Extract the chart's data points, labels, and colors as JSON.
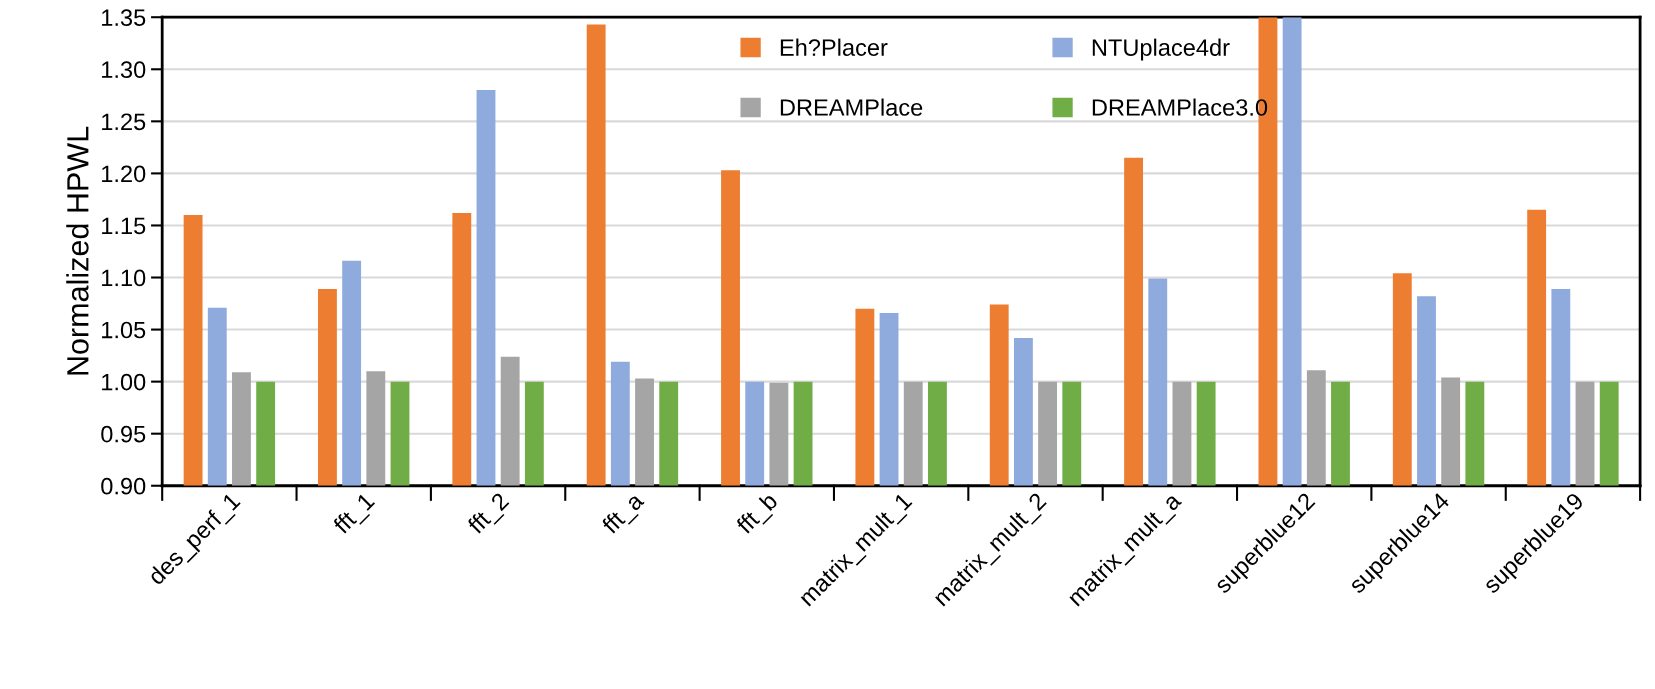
{
  "chart_data": {
    "type": "bar",
    "ylabel": "Normalized HPWL",
    "categories": [
      "des_perf_1",
      "fft_1",
      "fft_2",
      "fft_a",
      "fft_b",
      "matrix_mult_1",
      "matrix_mult_2",
      "matrix_mult_a",
      "superblue12",
      "superblue14",
      "superblue19"
    ],
    "series": [
      {
        "name": "Eh?Placer",
        "color": "#ed7d31",
        "values": [
          1.16,
          1.089,
          1.162,
          1.343,
          1.203,
          1.07,
          1.074,
          1.215,
          1.35,
          1.104,
          1.165
        ]
      },
      {
        "name": "NTUplace4dr",
        "color": "#8faadc",
        "values": [
          1.071,
          1.116,
          1.28,
          1.019,
          1.0,
          1.066,
          1.042,
          1.099,
          1.35,
          1.082,
          1.089
        ]
      },
      {
        "name": "DREAMPlace",
        "color": "#a5a5a5",
        "values": [
          1.009,
          1.01,
          1.024,
          1.003,
          0.999,
          1.0,
          1.0,
          1.0,
          1.011,
          1.004,
          1.0
        ]
      },
      {
        "name": "DREAMPlace3.0",
        "color": "#70ad47",
        "values": [
          1.0,
          1.0,
          1.0,
          1.0,
          1.0,
          1.0,
          1.0,
          1.0,
          1.0,
          1.0,
          1.0
        ]
      }
    ],
    "ylim": [
      0.9,
      1.35
    ],
    "yticks": [
      {
        "value": 0.9,
        "label": "0.90"
      },
      {
        "value": 0.95,
        "label": "0.95"
      },
      {
        "value": 1.0,
        "label": "1.00"
      },
      {
        "value": 1.05,
        "label": "1.05"
      },
      {
        "value": 1.1,
        "label": "1.10"
      },
      {
        "value": 1.15,
        "label": "1.15"
      },
      {
        "value": 1.2,
        "label": "1.20"
      },
      {
        "value": 1.25,
        "label": "1.25"
      },
      {
        "value": 1.3,
        "label": "1.30"
      },
      {
        "value": 1.35,
        "label": "1.35"
      }
    ],
    "grid": "y",
    "legend": "top"
  }
}
